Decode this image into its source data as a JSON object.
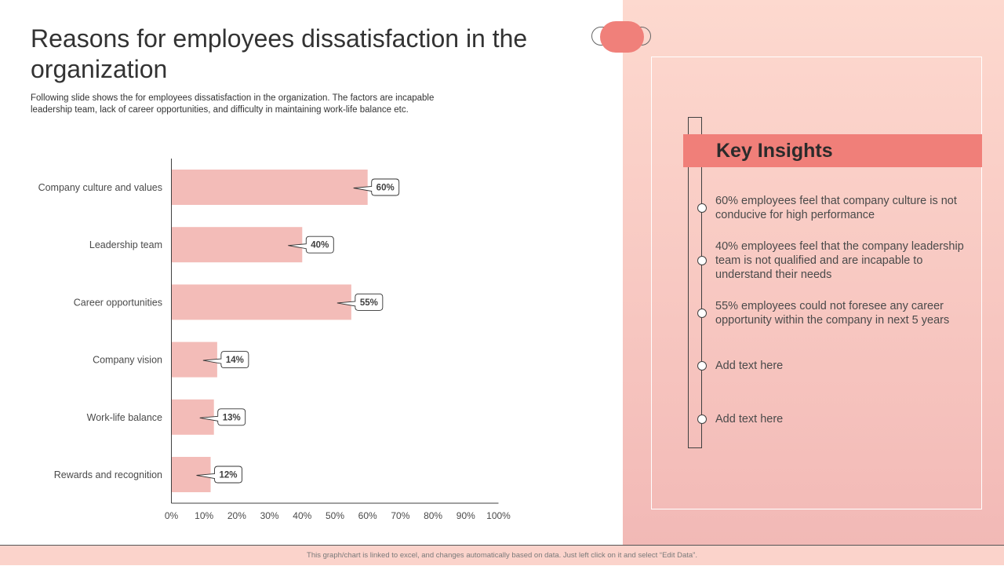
{
  "slide": {
    "title": "Reasons for employees dissatisfaction in the organization",
    "subtitle": "Following slide shows the for employees dissatisfaction in the organization. The factors are incapable leadership team, lack of career opportunities, and difficulty in maintaining work-life balance etc.",
    "footer": "This graph/chart is linked to excel, and changes automatically based on data. Just left click on it and select “Edit Data”."
  },
  "insights": {
    "header": "Key Insights",
    "items": [
      "60% employees feel that company culture is not conducive for high performance",
      "40% employees feel that the company leadership team is not qualified and are incapable to understand their needs",
      "55% employees could not foresee any career opportunity within the company in next 5 years",
      "Add text here",
      "Add text here"
    ]
  },
  "colors": {
    "bar": "#f3bcb8",
    "accent": "#f07f79",
    "panel": "#fdd9cf"
  },
  "chart_data": {
    "type": "bar",
    "orientation": "horizontal",
    "categories": [
      "Company culture and values",
      "Leadership team",
      "Career opportunities",
      "Company vision",
      "Work-life balance",
      "Rewards and recognition"
    ],
    "values": [
      60,
      40,
      55,
      14,
      13,
      12
    ],
    "value_labels": [
      "60%",
      "40%",
      "55%",
      "14%",
      "13%",
      "12%"
    ],
    "xlim": [
      0,
      100
    ],
    "xticks": [
      "0%",
      "10%",
      "20%",
      "30%",
      "40%",
      "50%",
      "60%",
      "70%",
      "80%",
      "90%",
      "100%"
    ],
    "grid": false,
    "title": "",
    "xlabel": "",
    "ylabel": ""
  }
}
